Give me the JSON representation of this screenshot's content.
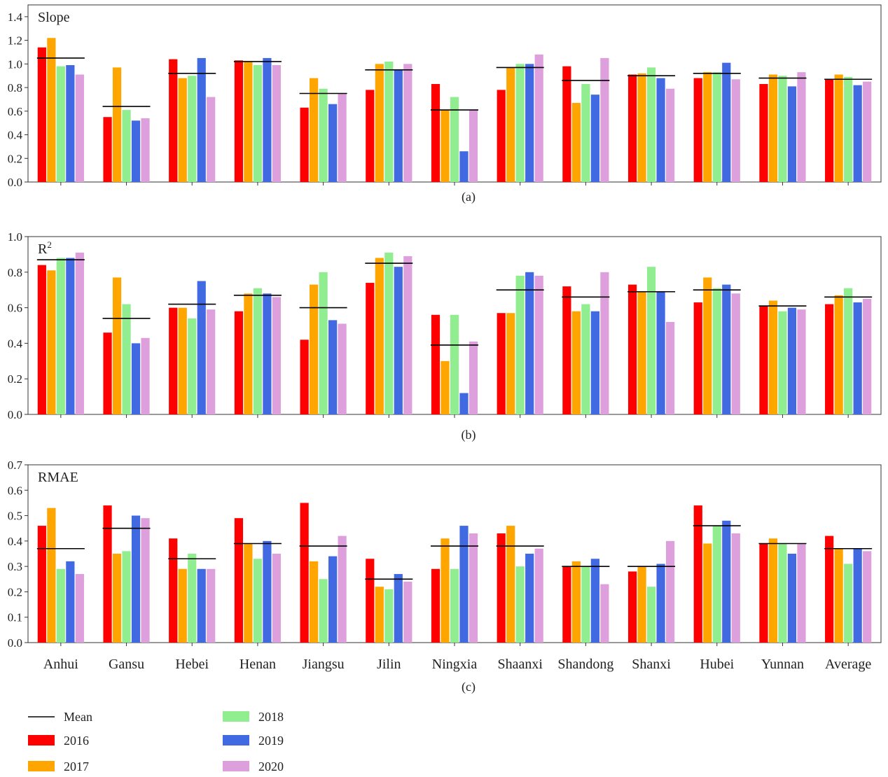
{
  "chart_data": {
    "type": "bar",
    "categories": [
      "Anhui",
      "Gansu",
      "Hebei",
      "Henan",
      "Jiangsu",
      "Jilin",
      "Ningxia",
      "Shaanxi",
      "Shandong",
      "Shanxi",
      "Hubei",
      "Yunnan",
      "Average"
    ],
    "series_names": [
      "2016",
      "2017",
      "2018",
      "2019",
      "2020"
    ],
    "colors": {
      "2016": "#ff0000",
      "2017": "#ffa500",
      "2018": "#90ee90",
      "2019": "#4169e1",
      "2020": "#dda0dd",
      "Mean": "#000000"
    },
    "legend": {
      "placement": "bottom-left",
      "mean_label": "Mean",
      "entries": [
        "2016",
        "2017",
        "2018",
        "2019",
        "2020"
      ]
    },
    "panels": [
      {
        "title": "Slope",
        "caption": "(a)",
        "ylim": [
          0,
          1.5
        ],
        "yticks": [
          "0.0",
          "0.2",
          "0.4",
          "0.6",
          "0.8",
          "1.0",
          "1.2",
          "1.4"
        ],
        "series": [
          {
            "name": "2016",
            "values": [
              1.14,
              0.55,
              1.04,
              1.03,
              0.63,
              0.78,
              0.83,
              0.78,
              0.98,
              0.91,
              0.88,
              0.83,
              0.87
            ]
          },
          {
            "name": "2017",
            "values": [
              1.22,
              0.97,
              0.88,
              1.02,
              0.88,
              1.0,
              0.61,
              0.97,
              0.67,
              0.92,
              0.93,
              0.91,
              0.91
            ]
          },
          {
            "name": "2018",
            "values": [
              0.98,
              0.61,
              0.9,
              0.99,
              0.79,
              1.02,
              0.72,
              1.0,
              0.83,
              0.97,
              0.93,
              0.9,
              0.89
            ]
          },
          {
            "name": "2019",
            "values": [
              0.99,
              0.52,
              1.05,
              1.05,
              0.66,
              0.95,
              0.26,
              1.0,
              0.74,
              0.88,
              1.01,
              0.81,
              0.82
            ]
          },
          {
            "name": "2020",
            "values": [
              0.91,
              0.54,
              0.72,
              0.99,
              0.75,
              1.0,
              0.61,
              1.08,
              1.05,
              0.79,
              0.87,
              0.93,
              0.85
            ]
          }
        ],
        "mean": [
          1.05,
          0.64,
          0.92,
          1.02,
          0.75,
          0.95,
          0.61,
          0.97,
          0.86,
          0.9,
          0.92,
          0.88,
          0.87
        ]
      },
      {
        "title": "R",
        "title_sup": "2",
        "caption": "(b)",
        "ylim": [
          0,
          1.0
        ],
        "yticks": [
          "0.0",
          "0.2",
          "0.4",
          "0.6",
          "0.8",
          "1.0"
        ],
        "series": [
          {
            "name": "2016",
            "values": [
              0.84,
              0.46,
              0.6,
              0.58,
              0.42,
              0.74,
              0.56,
              0.57,
              0.72,
              0.73,
              0.63,
              0.61,
              0.62
            ]
          },
          {
            "name": "2017",
            "values": [
              0.81,
              0.77,
              0.6,
              0.68,
              0.73,
              0.88,
              0.3,
              0.57,
              0.58,
              0.69,
              0.77,
              0.64,
              0.67
            ]
          },
          {
            "name": "2018",
            "values": [
              0.88,
              0.62,
              0.54,
              0.71,
              0.8,
              0.91,
              0.56,
              0.78,
              0.62,
              0.83,
              0.71,
              0.58,
              0.71
            ]
          },
          {
            "name": "2019",
            "values": [
              0.88,
              0.4,
              0.75,
              0.68,
              0.53,
              0.83,
              0.12,
              0.8,
              0.58,
              0.69,
              0.73,
              0.6,
              0.63
            ]
          },
          {
            "name": "2020",
            "values": [
              0.91,
              0.43,
              0.59,
              0.66,
              0.51,
              0.89,
              0.41,
              0.78,
              0.8,
              0.52,
              0.68,
              0.59,
              0.65
            ]
          }
        ],
        "mean": [
          0.87,
          0.54,
          0.62,
          0.67,
          0.6,
          0.85,
          0.39,
          0.7,
          0.66,
          0.69,
          0.7,
          0.61,
          0.66
        ]
      },
      {
        "title": "RMAE",
        "caption": "(c)",
        "ylim": [
          0,
          0.7
        ],
        "yticks": [
          "0.0",
          "0.1",
          "0.2",
          "0.3",
          "0.4",
          "0.5",
          "0.6",
          "0.7"
        ],
        "series": [
          {
            "name": "2016",
            "values": [
              0.46,
              0.54,
              0.41,
              0.49,
              0.55,
              0.33,
              0.29,
              0.43,
              0.3,
              0.28,
              0.54,
              0.39,
              0.42
            ]
          },
          {
            "name": "2017",
            "values": [
              0.53,
              0.35,
              0.29,
              0.39,
              0.32,
              0.22,
              0.41,
              0.46,
              0.32,
              0.3,
              0.39,
              0.41,
              0.37
            ]
          },
          {
            "name": "2018",
            "values": [
              0.29,
              0.36,
              0.35,
              0.33,
              0.25,
              0.21,
              0.29,
              0.3,
              0.3,
              0.22,
              0.46,
              0.39,
              0.31
            ]
          },
          {
            "name": "2019",
            "values": [
              0.32,
              0.5,
              0.29,
              0.4,
              0.34,
              0.27,
              0.46,
              0.35,
              0.33,
              0.31,
              0.48,
              0.35,
              0.37
            ]
          },
          {
            "name": "2020",
            "values": [
              0.27,
              0.49,
              0.29,
              0.35,
              0.42,
              0.24,
              0.43,
              0.37,
              0.23,
              0.4,
              0.43,
              0.39,
              0.36
            ]
          }
        ],
        "mean": [
          0.37,
          0.45,
          0.33,
          0.39,
          0.38,
          0.25,
          0.38,
          0.38,
          0.3,
          0.3,
          0.46,
          0.39,
          0.37
        ]
      }
    ]
  }
}
